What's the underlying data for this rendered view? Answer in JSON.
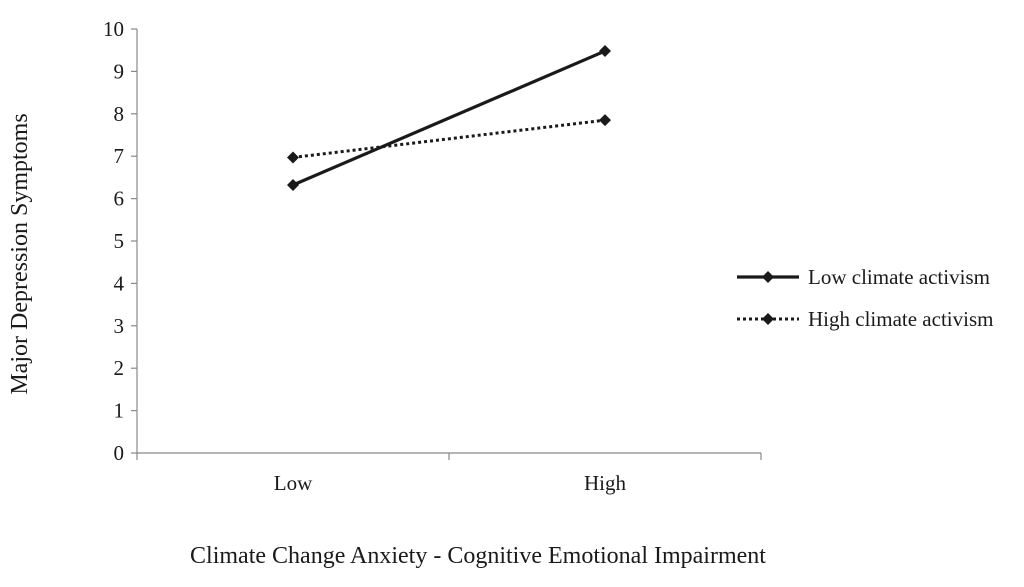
{
  "chart_data": {
    "type": "line",
    "title": "",
    "xlabel": "Climate Change Anxiety - Cognitive Emotional Impairment",
    "ylabel": "Major Depression Symptoms",
    "categories": [
      "Low",
      "High"
    ],
    "ylim": [
      0,
      10
    ],
    "yticks": [
      "0",
      "1",
      "2",
      "3",
      "4",
      "5",
      "6",
      "7",
      "8",
      "9",
      "10"
    ],
    "grid": false,
    "legend_position": "right",
    "series": [
      {
        "name": "Low climate activism",
        "values": [
          6.32,
          9.48
        ],
        "line_style": "solid",
        "marker": "diamond",
        "color": "#1a1a1a"
      },
      {
        "name": "High climate activism",
        "values": [
          6.97,
          7.85
        ],
        "line_style": "dotted",
        "marker": "diamond",
        "color": "#1a1a1a"
      }
    ]
  }
}
